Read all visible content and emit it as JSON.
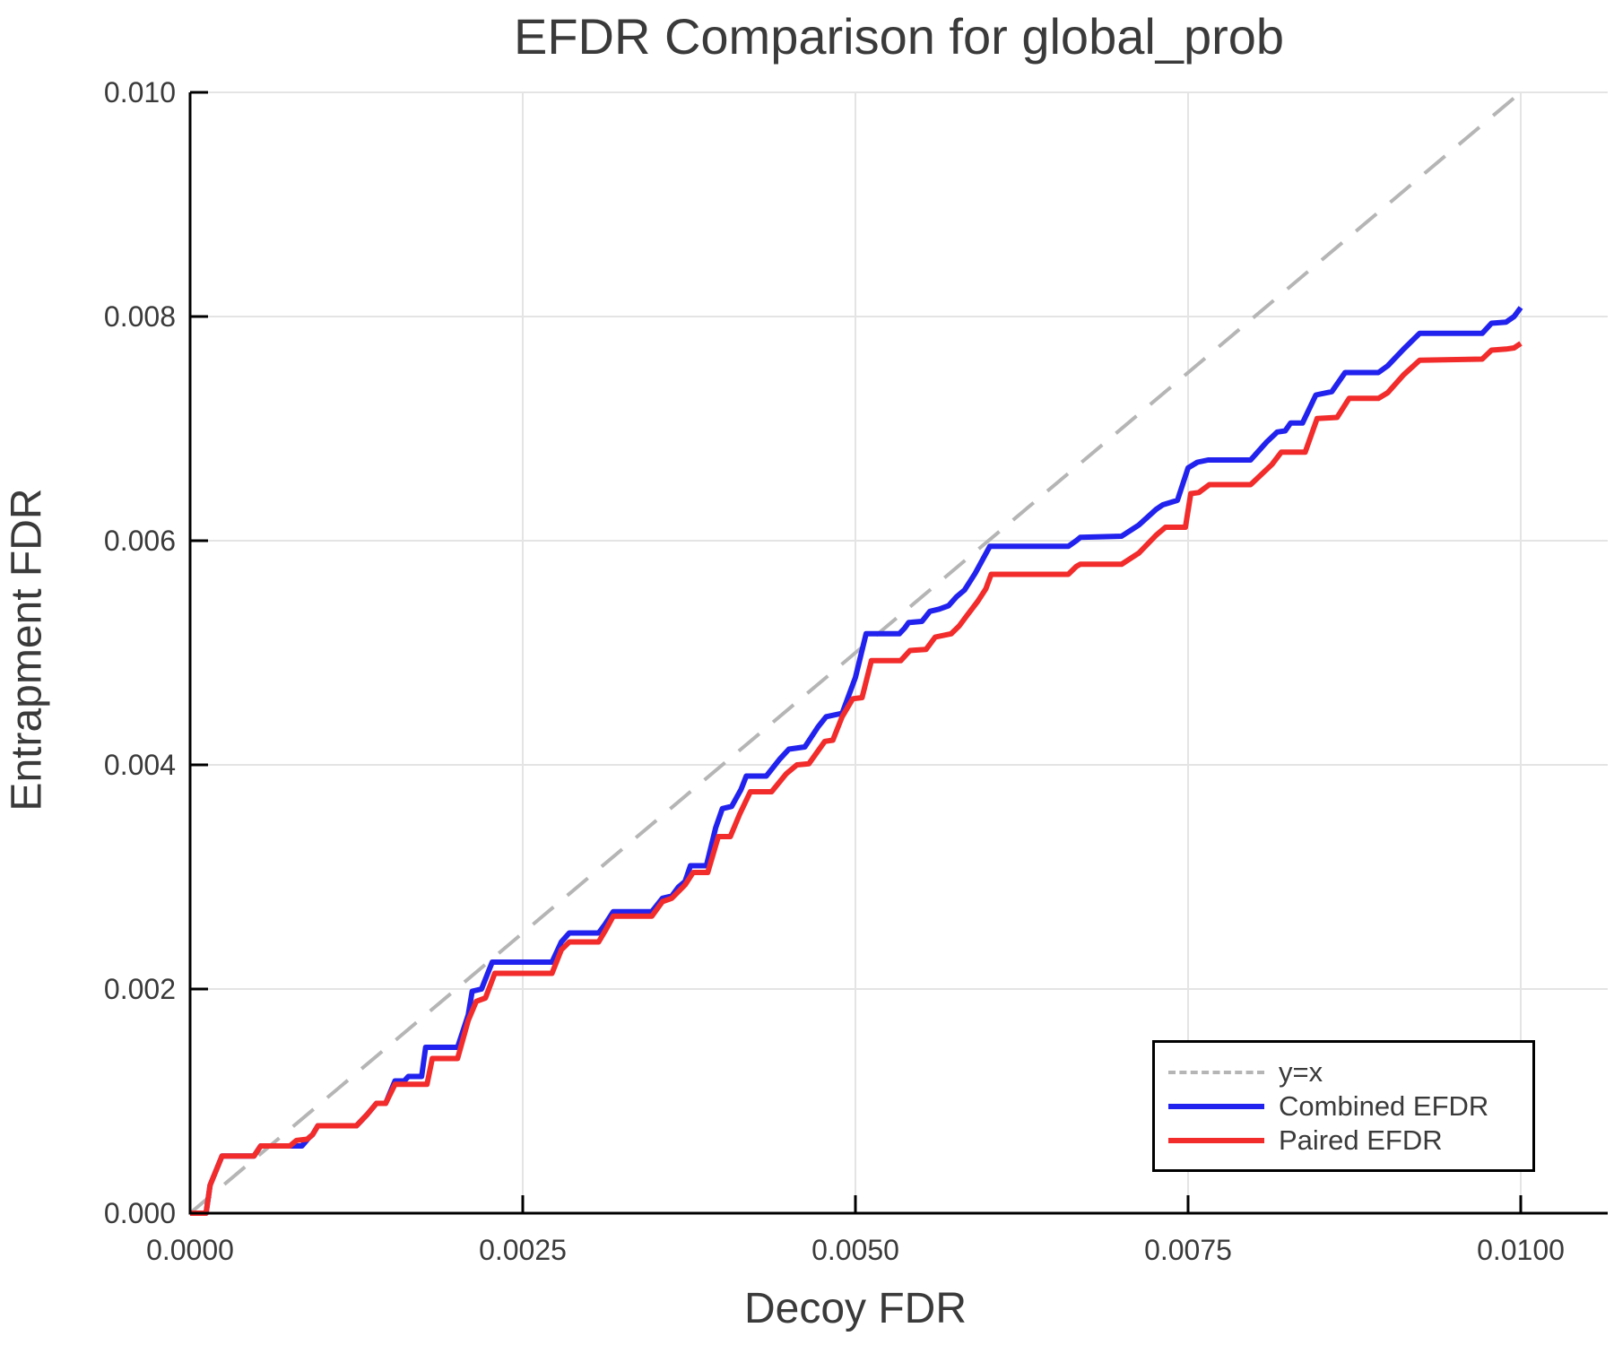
{
  "colors": {
    "background": "#ffffff",
    "spine": "#000000",
    "gridline": "#e4e4e4",
    "text": "#3a3a3a",
    "diagonal": "#b5b5b5",
    "combined": "#2222ee",
    "paired": "#f22b2b"
  },
  "chart_data": {
    "type": "line",
    "title": "EFDR Comparison for global_prob",
    "xlabel": "Decoy FDR",
    "ylabel": "Entrapment FDR",
    "xlim": [
      0,
      0.01065
    ],
    "ylim": [
      0,
      0.01
    ],
    "grid": true,
    "legend_position": "bottom-right",
    "x_ticks": {
      "values": [
        0.0,
        0.0025,
        0.005,
        0.0075,
        0.01
      ],
      "labels": [
        "0.0000",
        "0.0025",
        "0.0050",
        "0.0075",
        "0.0100"
      ]
    },
    "y_ticks": {
      "values": [
        0.0,
        0.002,
        0.004,
        0.006,
        0.008,
        0.01
      ],
      "labels": [
        "0.000",
        "0.002",
        "0.004",
        "0.006",
        "0.008",
        "0.010"
      ]
    },
    "series": [
      {
        "name": "y=x",
        "color": "#b5b5b5",
        "style": "dashed",
        "points": [
          [
            0,
            0
          ],
          [
            0.01,
            0.01
          ]
        ]
      },
      {
        "name": "Combined EFDR",
        "color": "#2222ee",
        "style": "solid",
        "points": [
          [
            0.0,
            0.0
          ],
          [
            0.00012,
            0.0
          ],
          [
            0.00015,
            0.00025
          ],
          [
            0.00024,
            0.00051
          ],
          [
            0.00048,
            0.00051
          ],
          [
            0.00053,
            0.0006
          ],
          [
            0.00084,
            0.0006
          ],
          [
            0.00089,
            0.00067
          ],
          [
            0.00092,
            0.0007
          ],
          [
            0.00096,
            0.00078
          ],
          [
            0.00125,
            0.00078
          ],
          [
            0.00133,
            0.00088
          ],
          [
            0.0014,
            0.00098
          ],
          [
            0.00147,
            0.00098
          ],
          [
            0.00154,
            0.00118
          ],
          [
            0.00161,
            0.00118
          ],
          [
            0.00164,
            0.00122
          ],
          [
            0.00174,
            0.00122
          ],
          [
            0.00177,
            0.00148
          ],
          [
            0.00201,
            0.00148
          ],
          [
            0.00209,
            0.00177
          ],
          [
            0.00212,
            0.00198
          ],
          [
            0.00219,
            0.002
          ],
          [
            0.00227,
            0.00224
          ],
          [
            0.00272,
            0.00224
          ],
          [
            0.00279,
            0.00242
          ],
          [
            0.00285,
            0.0025
          ],
          [
            0.00307,
            0.0025
          ],
          [
            0.00312,
            0.00258
          ],
          [
            0.00318,
            0.00269
          ],
          [
            0.00347,
            0.00269
          ],
          [
            0.00355,
            0.00281
          ],
          [
            0.00362,
            0.00283
          ],
          [
            0.00367,
            0.00291
          ],
          [
            0.00372,
            0.00296
          ],
          [
            0.00376,
            0.0031
          ],
          [
            0.00388,
            0.0031
          ],
          [
            0.00395,
            0.00344
          ],
          [
            0.004,
            0.00361
          ],
          [
            0.00407,
            0.00363
          ],
          [
            0.00414,
            0.00378
          ],
          [
            0.00418,
            0.0039
          ],
          [
            0.00433,
            0.0039
          ],
          [
            0.00443,
            0.00405
          ],
          [
            0.0045,
            0.00414
          ],
          [
            0.00462,
            0.00416
          ],
          [
            0.00472,
            0.00434
          ],
          [
            0.00478,
            0.00443
          ],
          [
            0.0049,
            0.00446
          ],
          [
            0.005,
            0.00478
          ],
          [
            0.00508,
            0.00517
          ],
          [
            0.00533,
            0.00517
          ],
          [
            0.00537,
            0.00522
          ],
          [
            0.0054,
            0.00527
          ],
          [
            0.0055,
            0.00528
          ],
          [
            0.00556,
            0.00537
          ],
          [
            0.00563,
            0.00539
          ],
          [
            0.0057,
            0.00542
          ],
          [
            0.00576,
            0.0055
          ],
          [
            0.00582,
            0.00556
          ],
          [
            0.0059,
            0.00571
          ],
          [
            0.00601,
            0.00595
          ],
          [
            0.0066,
            0.00595
          ],
          [
            0.00666,
            0.006
          ],
          [
            0.00669,
            0.00603
          ],
          [
            0.007,
            0.00604
          ],
          [
            0.00713,
            0.00614
          ],
          [
            0.00726,
            0.00628
          ],
          [
            0.00731,
            0.00632
          ],
          [
            0.00742,
            0.00636
          ],
          [
            0.0075,
            0.00665
          ],
          [
            0.00757,
            0.0067
          ],
          [
            0.00765,
            0.00672
          ],
          [
            0.00797,
            0.00672
          ],
          [
            0.00809,
            0.00688
          ],
          [
            0.00817,
            0.00697
          ],
          [
            0.00823,
            0.00698
          ],
          [
            0.00827,
            0.00705
          ],
          [
            0.00836,
            0.00705
          ],
          [
            0.00846,
            0.0073
          ],
          [
            0.00858,
            0.00733
          ],
          [
            0.00868,
            0.0075
          ],
          [
            0.00893,
            0.0075
          ],
          [
            0.009,
            0.00756
          ],
          [
            0.00912,
            0.00771
          ],
          [
            0.00924,
            0.00785
          ],
          [
            0.00971,
            0.00785
          ],
          [
            0.00978,
            0.00794
          ],
          [
            0.00989,
            0.00795
          ],
          [
            0.00995,
            0.008
          ],
          [
            0.01,
            0.00808
          ]
        ]
      },
      {
        "name": "Paired EFDR",
        "color": "#f22b2b",
        "style": "solid",
        "points": [
          [
            0.0,
            0.0
          ],
          [
            0.00012,
            0.0
          ],
          [
            0.00015,
            0.00025
          ],
          [
            0.00024,
            0.00051
          ],
          [
            0.00048,
            0.00051
          ],
          [
            0.00053,
            0.0006
          ],
          [
            0.00075,
            0.0006
          ],
          [
            0.0008,
            0.00065
          ],
          [
            0.00088,
            0.00066
          ],
          [
            0.00092,
            0.0007
          ],
          [
            0.00096,
            0.00078
          ],
          [
            0.00125,
            0.00078
          ],
          [
            0.00133,
            0.00088
          ],
          [
            0.0014,
            0.00098
          ],
          [
            0.00147,
            0.00098
          ],
          [
            0.00154,
            0.00115
          ],
          [
            0.00178,
            0.00115
          ],
          [
            0.00182,
            0.00138
          ],
          [
            0.00201,
            0.00138
          ],
          [
            0.00209,
            0.00172
          ],
          [
            0.00215,
            0.00189
          ],
          [
            0.00222,
            0.00192
          ],
          [
            0.00229,
            0.00214
          ],
          [
            0.00272,
            0.00214
          ],
          [
            0.00279,
            0.00235
          ],
          [
            0.00285,
            0.00242
          ],
          [
            0.00307,
            0.00242
          ],
          [
            0.00312,
            0.00252
          ],
          [
            0.00318,
            0.00265
          ],
          [
            0.00347,
            0.00265
          ],
          [
            0.00355,
            0.00278
          ],
          [
            0.00362,
            0.00281
          ],
          [
            0.00367,
            0.00287
          ],
          [
            0.00372,
            0.00293
          ],
          [
            0.00378,
            0.00304
          ],
          [
            0.00389,
            0.00304
          ],
          [
            0.00397,
            0.00336
          ],
          [
            0.00406,
            0.00336
          ],
          [
            0.00413,
            0.00356
          ],
          [
            0.00421,
            0.00376
          ],
          [
            0.00437,
            0.00376
          ],
          [
            0.00448,
            0.00392
          ],
          [
            0.00456,
            0.004
          ],
          [
            0.00465,
            0.00401
          ],
          [
            0.00477,
            0.00421
          ],
          [
            0.00483,
            0.00422
          ],
          [
            0.0049,
            0.00443
          ],
          [
            0.00498,
            0.00459
          ],
          [
            0.00505,
            0.0046
          ],
          [
            0.00512,
            0.00493
          ],
          [
            0.00534,
            0.00493
          ],
          [
            0.00541,
            0.00502
          ],
          [
            0.00553,
            0.00503
          ],
          [
            0.0056,
            0.00514
          ],
          [
            0.00572,
            0.00517
          ],
          [
            0.00578,
            0.00524
          ],
          [
            0.00583,
            0.00532
          ],
          [
            0.00592,
            0.00546
          ],
          [
            0.00598,
            0.00557
          ],
          [
            0.00602,
            0.0057
          ],
          [
            0.0066,
            0.0057
          ],
          [
            0.00666,
            0.00577
          ],
          [
            0.00669,
            0.00579
          ],
          [
            0.007,
            0.00579
          ],
          [
            0.00713,
            0.00589
          ],
          [
            0.00726,
            0.00605
          ],
          [
            0.00733,
            0.00612
          ],
          [
            0.00748,
            0.00612
          ],
          [
            0.00752,
            0.00642
          ],
          [
            0.00758,
            0.00643
          ],
          [
            0.00766,
            0.0065
          ],
          [
            0.00797,
            0.0065
          ],
          [
            0.00813,
            0.00668
          ],
          [
            0.0082,
            0.00679
          ],
          [
            0.00838,
            0.00679
          ],
          [
            0.00847,
            0.00709
          ],
          [
            0.00862,
            0.0071
          ],
          [
            0.00871,
            0.00727
          ],
          [
            0.00893,
            0.00727
          ],
          [
            0.009,
            0.00732
          ],
          [
            0.00912,
            0.00748
          ],
          [
            0.00924,
            0.00761
          ],
          [
            0.00971,
            0.00762
          ],
          [
            0.00978,
            0.0077
          ],
          [
            0.00989,
            0.00771
          ],
          [
            0.00995,
            0.00772
          ],
          [
            0.01,
            0.00776
          ]
        ]
      }
    ]
  }
}
